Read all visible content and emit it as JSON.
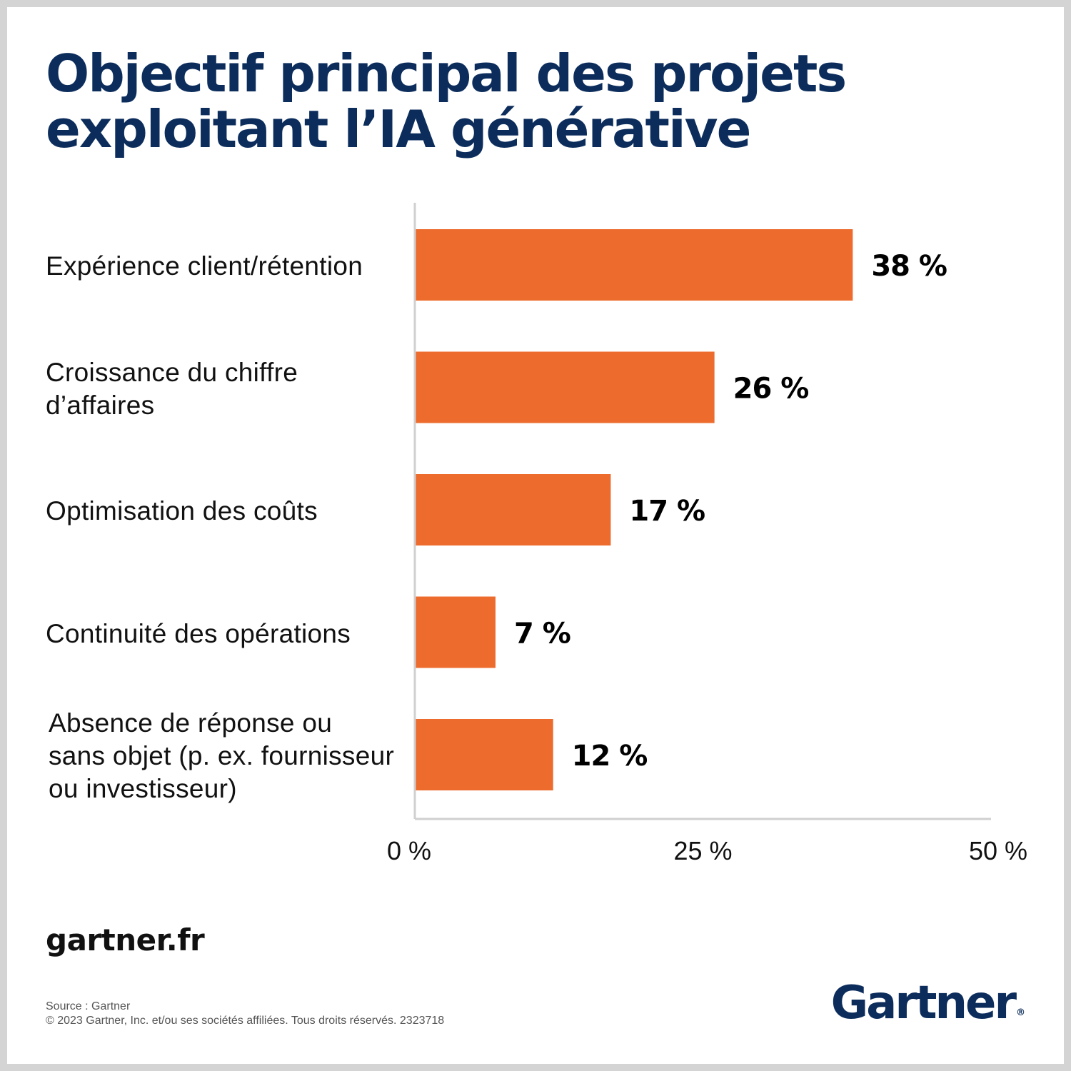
{
  "title": {
    "line1": "Objectif principal des projets",
    "line2": "exploitant l’IA générative"
  },
  "chart_data": {
    "type": "bar",
    "orientation": "horizontal",
    "categories": [
      "Expérience client/rétention",
      "Croissance du chiffre d’affaires",
      "Optimisation des coûts",
      "Continuité des opérations",
      "Absence de réponse ou sans objet (p. ex. fournisseur ou investisseur)"
    ],
    "category_lines": [
      [
        "Expérience client/rétention"
      ],
      [
        "Croissance du chiffre",
        "d’affaires"
      ],
      [
        "Optimisation des coûts"
      ],
      [
        "Continuité des opérations"
      ],
      [
        "Absence de réponse ou",
        "sans objet (p. ex. fournisseur",
        "ou investisseur)"
      ]
    ],
    "values": [
      38,
      26,
      17,
      7,
      12
    ],
    "value_labels": [
      "38 %",
      "26 %",
      "17 %",
      "7 %",
      "12 %"
    ],
    "xlim": [
      0,
      50
    ],
    "ticks": [
      0,
      25,
      50
    ],
    "tick_labels": [
      "0 %",
      "25 %",
      "50 %"
    ],
    "grid": false,
    "bar_color": "#ec6b2d",
    "axis_color": "#d0d0d0"
  },
  "footer": {
    "website": "gartner.fr",
    "source": "Source : Gartner",
    "copyright": "© 2023 Gartner, Inc. et/ou ses sociétés affiliées. Tous droits réservés. 2323718",
    "logo_text": "Gartner",
    "logo_mark": "®"
  },
  "colors": {
    "title": "#0c2d5c",
    "frame": "#d4d4d4"
  }
}
